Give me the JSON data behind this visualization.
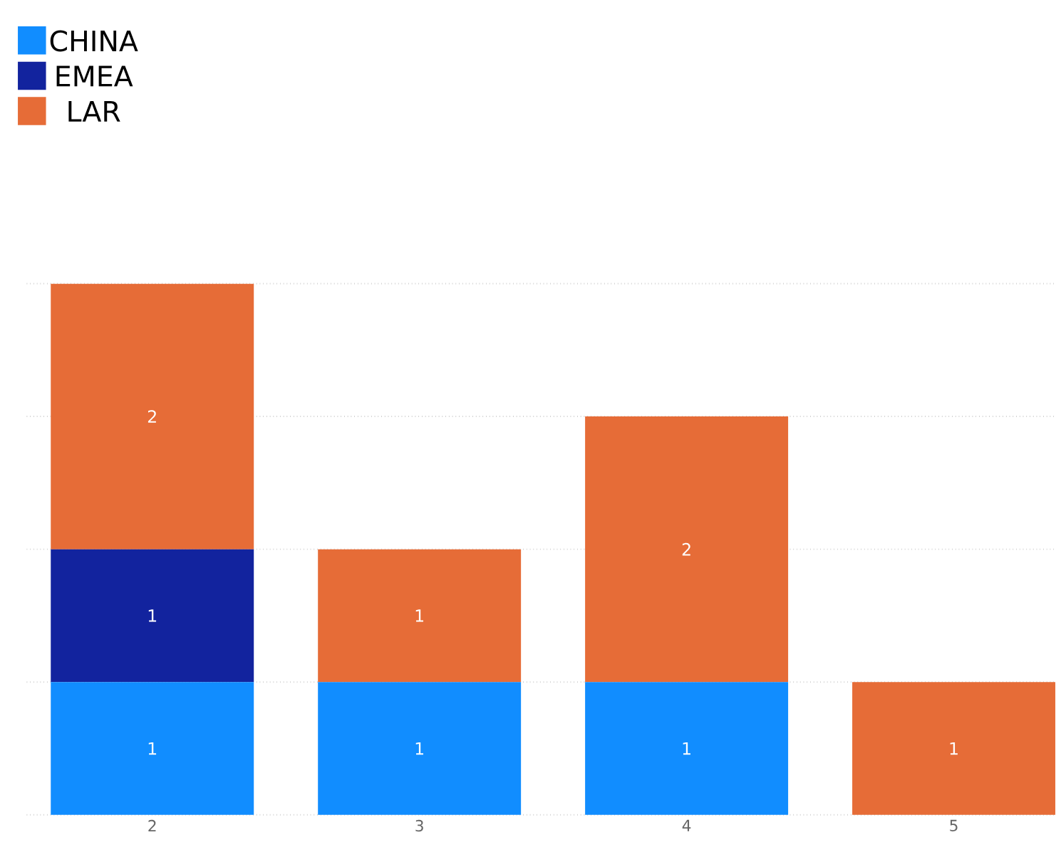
{
  "chart_data": {
    "type": "bar",
    "stacked": true,
    "categories": [
      "2",
      "3",
      "4",
      "5"
    ],
    "series": [
      {
        "name": "CHINA",
        "color": "#118dff",
        "values": [
          1,
          1,
          1,
          null
        ]
      },
      {
        "name": "EMEA",
        "color": "#12239e",
        "values": [
          1,
          null,
          null,
          null
        ]
      },
      {
        "name": "LAR",
        "color": "#e66c37",
        "values": [
          2,
          1,
          2,
          1
        ]
      }
    ],
    "tick_labels": "x",
    "grid": "y",
    "legend": "top left",
    "data_labels": true
  }
}
